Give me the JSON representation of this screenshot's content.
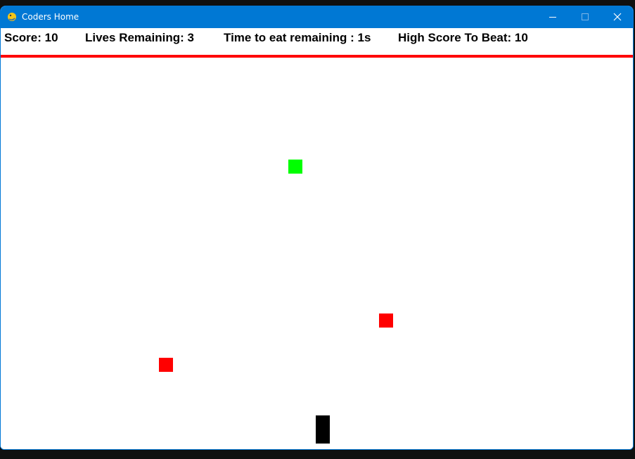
{
  "window": {
    "title": "Coders Home",
    "icon": "pygame-snake-icon",
    "accent_color": "#0078d4"
  },
  "controls": {
    "minimize_icon": "minimize-icon",
    "maximize_icon": "maximize-icon",
    "close_icon": "close-icon"
  },
  "hud": {
    "score": "Score: 10",
    "lives": "Lives Remaining: 3",
    "timer": "Time to eat remaining : 1s",
    "high_score": "High Score To Beat: 10",
    "divider_color": "#ff0000"
  },
  "game": {
    "food_color": "#00ff00",
    "enemy_color": "#ff0000",
    "player_color": "#000000",
    "background_color": "#ffffff"
  }
}
